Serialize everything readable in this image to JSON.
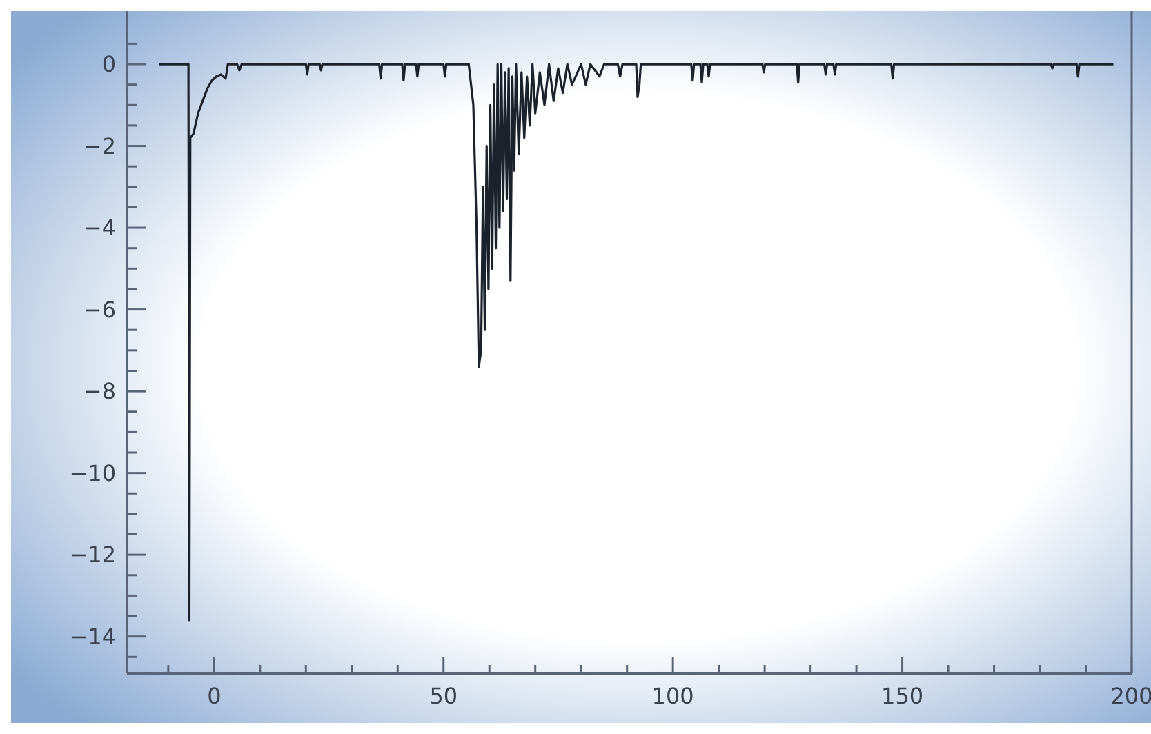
{
  "chart_data": {
    "type": "line",
    "color": "#1c222c",
    "line_style": "solid",
    "marker": "none",
    "grid": false,
    "x": [
      -12,
      -5.6,
      -5.4,
      -5.2,
      -4.5,
      -3.5,
      -2.5,
      -1.5,
      -0.5,
      0.5,
      1.5,
      2.5,
      3,
      5,
      5.5,
      6,
      20,
      20.3,
      20.6,
      23,
      23.3,
      23.6,
      36,
      36.3,
      36.6,
      41,
      41.3,
      41.6,
      44,
      44.3,
      44.6,
      50,
      50.3,
      50.6,
      55.5,
      56.5,
      57.2,
      57.7,
      58.2,
      58.6,
      59,
      59.4,
      59.8,
      60.2,
      60.6,
      61,
      61.4,
      61.8,
      62.2,
      62.6,
      63,
      63.4,
      63.8,
      64.2,
      64.6,
      65,
      65.4,
      65.8,
      66.4,
      67,
      67.6,
      68.2,
      68.8,
      69.4,
      70,
      71,
      72,
      73,
      74,
      75,
      76,
      77,
      78,
      80,
      81,
      82,
      84,
      85,
      88,
      88.5,
      89,
      92,
      92.3,
      92.7,
      93,
      104,
      104.3,
      104.6,
      106,
      106.3,
      106.6,
      107.5,
      107.8,
      108.1,
      119.5,
      119.8,
      120.1,
      127,
      127.3,
      127.6,
      133,
      133.3,
      133.6,
      135,
      135.3,
      135.6,
      147.6,
      147.9,
      148.2,
      182.4,
      182.7,
      183,
      188,
      188.3,
      188.6,
      196
    ],
    "values": [
      0,
      0,
      -13.6,
      -1.8,
      -1.7,
      -1.2,
      -0.9,
      -0.6,
      -0.4,
      -0.3,
      -0.25,
      -0.35,
      0,
      0,
      -0.15,
      0,
      0,
      -0.25,
      0,
      0,
      -0.15,
      0,
      0,
      -0.35,
      0,
      0,
      -0.4,
      0,
      0,
      -0.3,
      0,
      0,
      -0.3,
      0,
      0,
      -1,
      -4,
      -7.4,
      -7,
      -3,
      -6.5,
      -2,
      -5.5,
      -1,
      -5,
      -0.5,
      -4.5,
      0,
      -4,
      0,
      -3.6,
      -0.2,
      -3.3,
      -0.1,
      -5.3,
      -0.3,
      -2.6,
      0,
      -2.2,
      -0.2,
      -1.8,
      -0.3,
      -1.5,
      0,
      -1.2,
      -0.2,
      -1,
      0,
      -0.9,
      -0.1,
      -0.7,
      0,
      -0.5,
      0,
      -0.5,
      0,
      -0.3,
      0,
      0,
      -0.3,
      0,
      0,
      -0.8,
      -0.5,
      0,
      0,
      -0.4,
      0,
      0,
      -0.45,
      0,
      0,
      -0.3,
      0,
      0,
      -0.2,
      0,
      0,
      -0.45,
      0,
      0,
      -0.25,
      0,
      0,
      -0.25,
      0,
      0,
      -0.35,
      0,
      0,
      -0.1,
      0,
      0,
      -0.3,
      0,
      0
    ],
    "xlim": [
      -19,
      200
    ],
    "ylim": [
      -14.9,
      1.3
    ],
    "xticks": [
      {
        "value": -10,
        "label": null
      },
      0,
      {
        "value": 10,
        "label": null
      },
      {
        "value": 20,
        "label": null
      },
      {
        "value": 30,
        "label": null
      },
      {
        "value": 40,
        "label": null
      },
      50,
      {
        "value": 60,
        "label": null
      },
      {
        "value": 70,
        "label": null
      },
      {
        "value": 80,
        "label": null
      },
      {
        "value": 90,
        "label": null
      },
      100,
      {
        "value": 110,
        "label": null
      },
      {
        "value": 120,
        "label": null
      },
      {
        "value": 130,
        "label": null
      },
      {
        "value": 140,
        "label": null
      },
      150,
      {
        "value": 160,
        "label": null
      },
      {
        "value": 170,
        "label": null
      },
      {
        "value": 180,
        "label": null
      },
      {
        "value": 190,
        "label": null
      },
      200
    ],
    "yticks": [
      {
        "value": 0.5,
        "label": null
      },
      0,
      {
        "value": -0.5,
        "label": null
      },
      {
        "value": -1,
        "label": null
      },
      {
        "value": -1.5,
        "label": null
      },
      -2,
      {
        "value": -2.5,
        "label": null
      },
      {
        "value": -3,
        "label": null
      },
      {
        "value": -3.5,
        "label": null
      },
      -4,
      {
        "value": -4.5,
        "label": null
      },
      {
        "value": -5,
        "label": null
      },
      {
        "value": -5.5,
        "label": null
      },
      -6,
      {
        "value": -6.5,
        "label": null
      },
      {
        "value": -7,
        "label": null
      },
      {
        "value": -7.5,
        "label": null
      },
      -8,
      {
        "value": -8.5,
        "label": null
      },
      {
        "value": -9,
        "label": null
      },
      {
        "value": -9.5,
        "label": null
      },
      -10,
      {
        "value": -10.5,
        "label": null
      },
      {
        "value": -11,
        "label": null
      },
      {
        "value": -11.5,
        "label": null
      },
      -12,
      {
        "value": -12.5,
        "label": null
      },
      {
        "value": -13,
        "label": null
      },
      {
        "value": -13.5,
        "label": null
      },
      -14,
      {
        "value": -14.5,
        "label": null
      }
    ]
  }
}
